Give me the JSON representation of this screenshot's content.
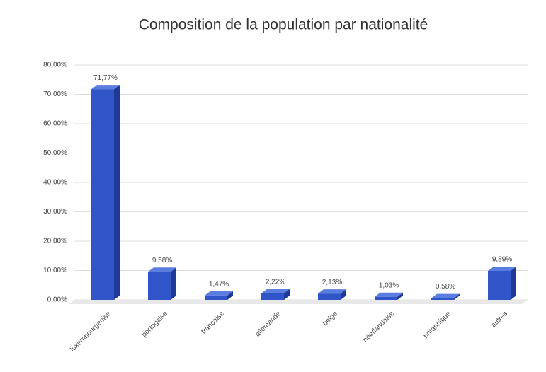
{
  "chart_data": {
    "type": "bar3d",
    "title": "Composition de la population par nationalité",
    "categories": [
      "luxembourgeoise",
      "portugaise",
      "française",
      "allemande",
      "belge",
      "néerlandaise",
      "britannique",
      "autres"
    ],
    "values": [
      71.77,
      9.58,
      1.47,
      2.22,
      2.13,
      1.03,
      0.58,
      9.89
    ],
    "value_labels": [
      "71,77%",
      "9,58%",
      "1,47%",
      "2,22%",
      "2,13%",
      "1,03%",
      "0,58%",
      "9,89%"
    ],
    "color": "#2f55c8",
    "ylim": [
      0,
      80
    ],
    "yticks": [
      {
        "value": 0,
        "label": "0,00%"
      },
      {
        "value": 10,
        "label": "10,00%"
      },
      {
        "value": 20,
        "label": "20,00%"
      },
      {
        "value": 30,
        "label": "30,00%"
      },
      {
        "value": 40,
        "label": "40,00%"
      },
      {
        "value": 50,
        "label": "50,00%"
      },
      {
        "value": 60,
        "label": "60,00%"
      },
      {
        "value": 70,
        "label": "70,00%"
      },
      {
        "value": 80,
        "label": "80,00%"
      }
    ],
    "grid": true
  }
}
